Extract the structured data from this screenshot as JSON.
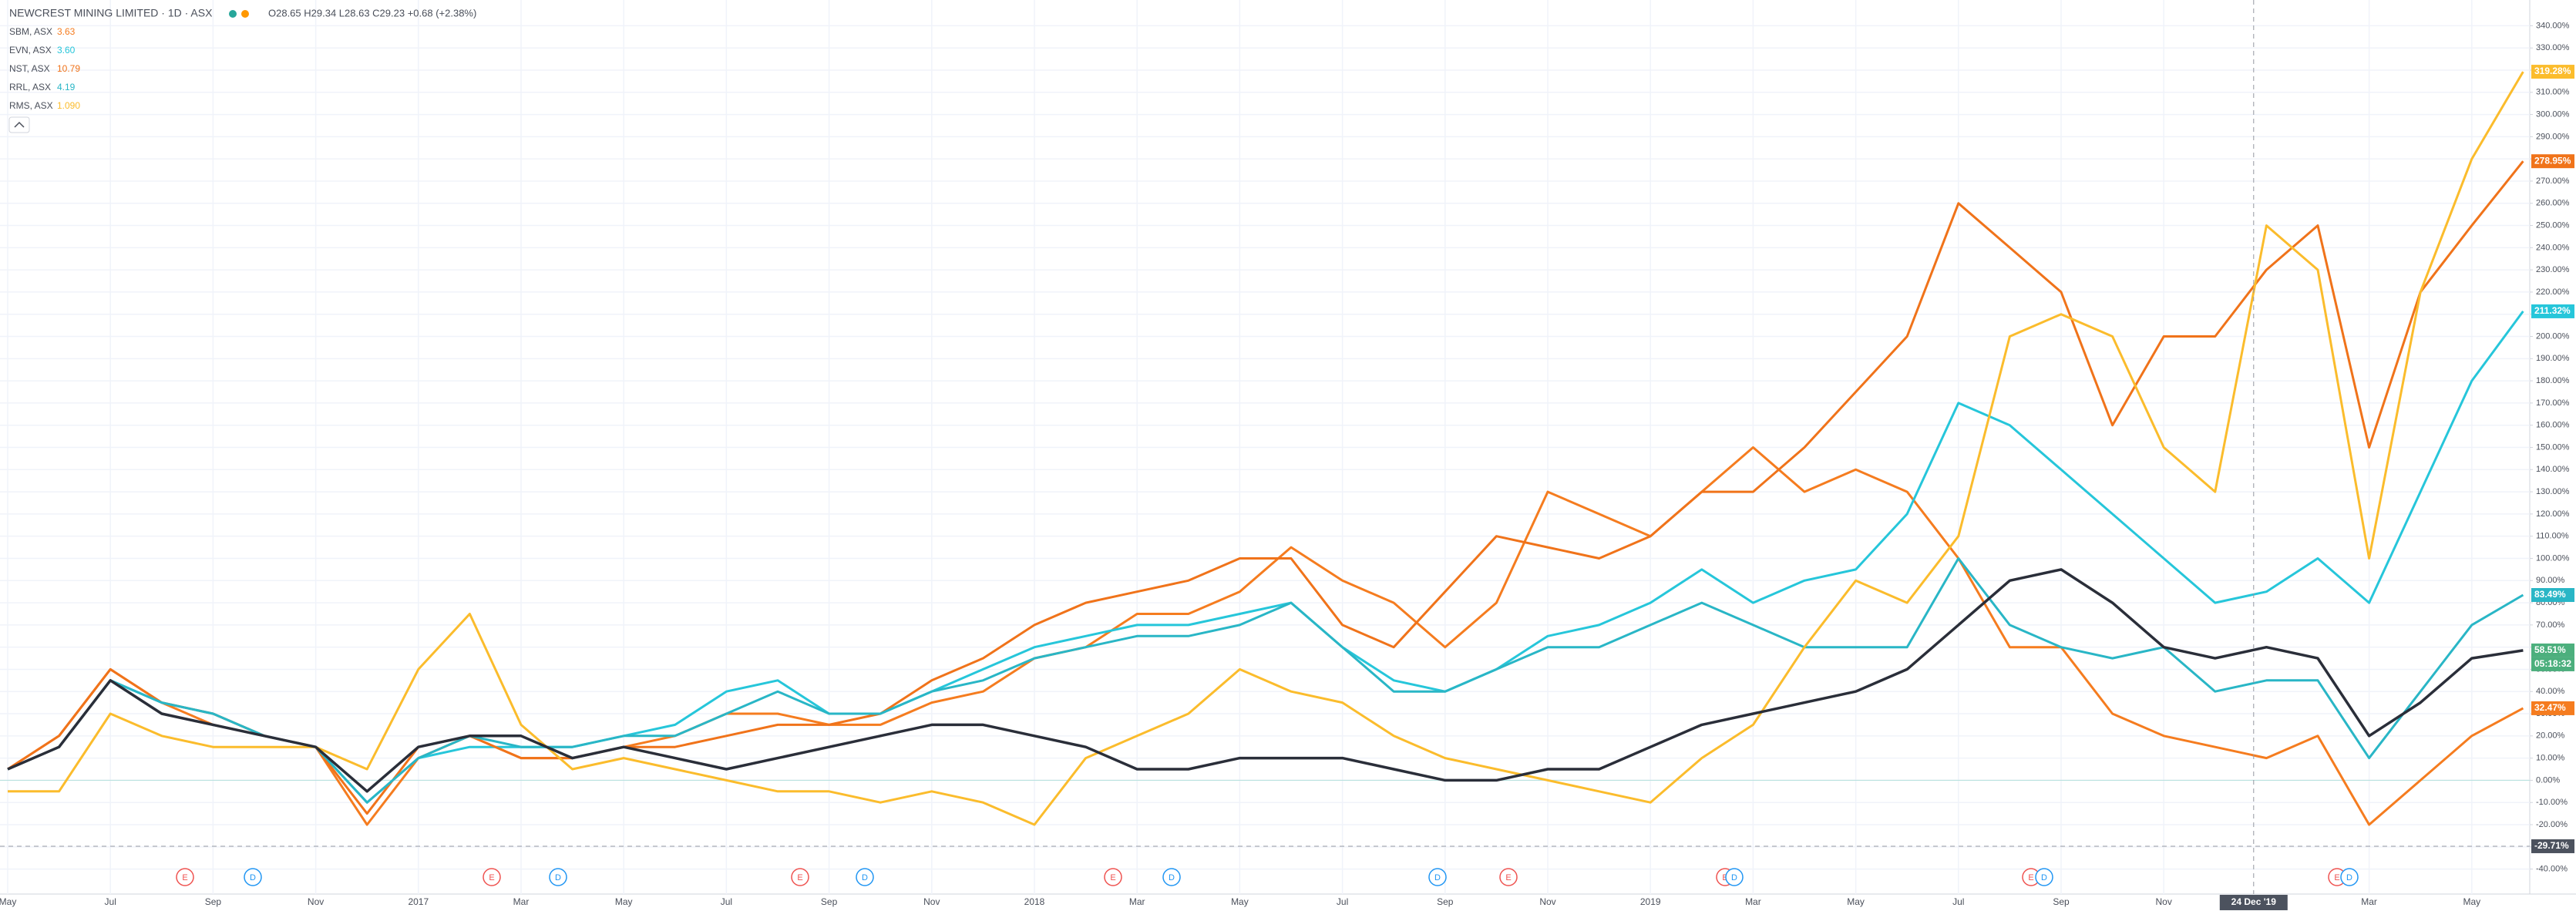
{
  "chart_data": {
    "type": "line",
    "title": "NEWCREST MINING LIMITED · 1D · ASX",
    "ohlc": "O28.65 H29.34 L28.63 C29.23 +0.68 (+2.38%)",
    "categories": [
      "May",
      null,
      "Jul",
      null,
      "Sep",
      null,
      "Nov",
      null,
      "2017",
      null,
      "Mar",
      null,
      "May",
      null,
      "Jul",
      null,
      "Sep",
      null,
      "Nov",
      null,
      "2018",
      null,
      "Mar",
      null,
      "May",
      null,
      "Jul",
      null,
      "Sep",
      null,
      "Nov",
      null,
      "2019",
      null,
      "Mar",
      null,
      "May",
      null,
      "Jul",
      null,
      "Sep",
      null,
      "Nov",
      null,
      null,
      null,
      "Mar",
      null,
      "May",
      null
    ],
    "main_series": {
      "color": "#2a2e39",
      "last_label": "58.51%",
      "badge_color": "#4caf7d",
      "countdown": "05:18:32",
      "values": [
        5,
        15,
        45,
        30,
        25,
        20,
        15,
        -5,
        15,
        20,
        20,
        10,
        15,
        10,
        5,
        10,
        15,
        20,
        25,
        25,
        20,
        15,
        5,
        5,
        10,
        10,
        10,
        5,
        0,
        0,
        5,
        5,
        15,
        25,
        30,
        35,
        40,
        50,
        70,
        90,
        95,
        80,
        60,
        55,
        60,
        55,
        20,
        35,
        55,
        58.51
      ]
    },
    "series": [
      {
        "name": "SBM, ASX",
        "price": "3.63",
        "color": "#f57c1f",
        "last_label": "32.47%",
        "values": [
          5,
          20,
          50,
          35,
          25,
          20,
          15,
          -20,
          10,
          20,
          10,
          10,
          15,
          20,
          30,
          30,
          25,
          25,
          35,
          40,
          55,
          60,
          75,
          75,
          85,
          105,
          90,
          80,
          60,
          80,
          130,
          120,
          110,
          130,
          150,
          130,
          140,
          130,
          100,
          60,
          60,
          30,
          20,
          15,
          10,
          20,
          -20,
          0,
          20,
          32.47
        ]
      },
      {
        "name": "EVN, ASX",
        "price": "3.60",
        "color": "#26c6da",
        "last_label": "211.32%",
        "values": [
          5,
          15,
          45,
          35,
          30,
          20,
          15,
          -10,
          10,
          15,
          15,
          15,
          20,
          25,
          40,
          45,
          30,
          30,
          40,
          50,
          60,
          65,
          70,
          70,
          75,
          80,
          60,
          45,
          40,
          50,
          65,
          70,
          80,
          95,
          80,
          90,
          95,
          120,
          170,
          160,
          140,
          120,
          100,
          80,
          85,
          100,
          80,
          130,
          180,
          211.32
        ]
      },
      {
        "name": "NST, ASX",
        "price": "10.79",
        "color": "#f0731a",
        "last_label": "278.95%",
        "values": [
          5,
          20,
          50,
          35,
          30,
          20,
          15,
          -15,
          15,
          20,
          10,
          10,
          15,
          15,
          20,
          25,
          25,
          30,
          45,
          55,
          70,
          80,
          85,
          90,
          100,
          100,
          70,
          60,
          85,
          110,
          105,
          100,
          110,
          130,
          130,
          150,
          175,
          200,
          260,
          240,
          220,
          160,
          200,
          200,
          230,
          250,
          150,
          220,
          250,
          278.95
        ]
      },
      {
        "name": "RRL, ASX",
        "price": "4.19",
        "color": "#29b6c6",
        "last_label": "83.49%",
        "values": [
          5,
          15,
          45,
          35,
          30,
          20,
          15,
          -10,
          10,
          20,
          15,
          15,
          20,
          20,
          30,
          40,
          30,
          30,
          40,
          45,
          55,
          60,
          65,
          65,
          70,
          80,
          60,
          40,
          40,
          50,
          60,
          60,
          70,
          80,
          70,
          60,
          60,
          60,
          100,
          70,
          60,
          55,
          60,
          40,
          45,
          45,
          10,
          40,
          70,
          83.49
        ]
      },
      {
        "name": "RMS, ASX",
        "price": "1.090",
        "color": "#fbbc2c",
        "last_label": "319.28%",
        "values": [
          -5,
          -5,
          30,
          20,
          15,
          15,
          15,
          5,
          50,
          75,
          25,
          5,
          10,
          5,
          0,
          -5,
          -5,
          -10,
          -5,
          -10,
          -20,
          10,
          20,
          30,
          50,
          40,
          35,
          20,
          10,
          5,
          0,
          -5,
          -10,
          10,
          25,
          60,
          90,
          80,
          110,
          200,
          210,
          200,
          150,
          130,
          250,
          230,
          100,
          220,
          280,
          319.28
        ]
      }
    ],
    "crosshair": {
      "value": -29.71,
      "label": "-29.71%",
      "date_label": "24 Dec '19"
    },
    "events": [
      "E",
      "D",
      "E",
      "D",
      "E",
      "D",
      "E",
      "D",
      "D",
      "E",
      "E",
      "D",
      "E",
      "D",
      "E",
      "D"
    ],
    "ylim": [
      -45,
      345
    ],
    "yticks": [
      {
        "value": -40,
        "label": "-40.00%"
      },
      {
        "value": -30,
        "label": "-30.00%"
      },
      {
        "value": -20,
        "label": "-20.00%"
      },
      {
        "value": -10,
        "label": "-10.00%"
      },
      {
        "value": 0,
        "label": "0.00%"
      },
      {
        "value": 10,
        "label": "10.00%"
      },
      {
        "value": 20,
        "label": "20.00%"
      },
      {
        "value": 30,
        "label": "30.00%"
      },
      {
        "value": 40,
        "label": "40.00%"
      },
      {
        "value": 50,
        "label": "50.00%"
      },
      {
        "value": 60,
        "label": "60.00%"
      },
      {
        "value": 70,
        "label": "70.00%"
      },
      {
        "value": 80,
        "label": "80.00%"
      },
      {
        "value": 90,
        "label": "90.00%"
      },
      {
        "value": 100,
        "label": "100.00%"
      },
      {
        "value": 110,
        "label": "110.00%"
      },
      {
        "value": 120,
        "label": "120.00%"
      },
      {
        "value": 130,
        "label": "130.00%"
      },
      {
        "value": 140,
        "label": "140.00%"
      },
      {
        "value": 150,
        "label": "150.00%"
      },
      {
        "value": 160,
        "label": "160.00%"
      },
      {
        "value": 170,
        "label": "170.00%"
      },
      {
        "value": 180,
        "label": "180.00%"
      },
      {
        "value": 190,
        "label": "190.00%"
      },
      {
        "value": 200,
        "label": "200.00%"
      },
      {
        "value": 210,
        "label": "210.00%"
      },
      {
        "value": 220,
        "label": "220.00%"
      },
      {
        "value": 230,
        "label": "230.00%"
      },
      {
        "value": 240,
        "label": "240.00%"
      },
      {
        "value": 250,
        "label": "250.00%"
      },
      {
        "value": 260,
        "label": "260.00%"
      },
      {
        "value": 270,
        "label": "270.00%"
      },
      {
        "value": 280,
        "label": "280.00%"
      },
      {
        "value": 290,
        "label": "290.00%"
      },
      {
        "value": 300,
        "label": "300.00%"
      },
      {
        "value": 310,
        "label": "310.00%"
      },
      {
        "value": 320,
        "label": "320.00%"
      },
      {
        "value": 330,
        "label": "330.00%"
      },
      {
        "value": 340,
        "label": "340.00%"
      }
    ],
    "grid": true
  }
}
